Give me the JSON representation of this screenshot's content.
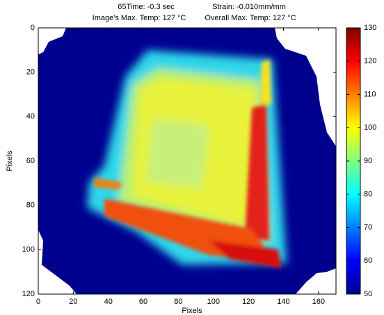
{
  "chart_data": {
    "type": "heatmap",
    "title_lines": [
      [
        "65Time: -0.3 sec",
        "Strain: -0.010mm/mm"
      ],
      [
        "Image's Max. Temp: 127 °C",
        "Overall Max. Temp: 127 °C"
      ]
    ],
    "xlabel": "Pixels",
    "ylabel": "Pixels",
    "xlim": [
      0,
      170
    ],
    "xticks": [
      0,
      20,
      40,
      60,
      80,
      100,
      120,
      140,
      160
    ],
    "ylim": [
      0,
      120
    ],
    "yticks": [
      0,
      20,
      40,
      60,
      80,
      100,
      120
    ],
    "y_reversed": true,
    "colormap": "jet",
    "clim": [
      50,
      130
    ],
    "cticks": [
      50,
      60,
      70,
      80,
      90,
      100,
      110,
      120,
      130
    ]
  }
}
